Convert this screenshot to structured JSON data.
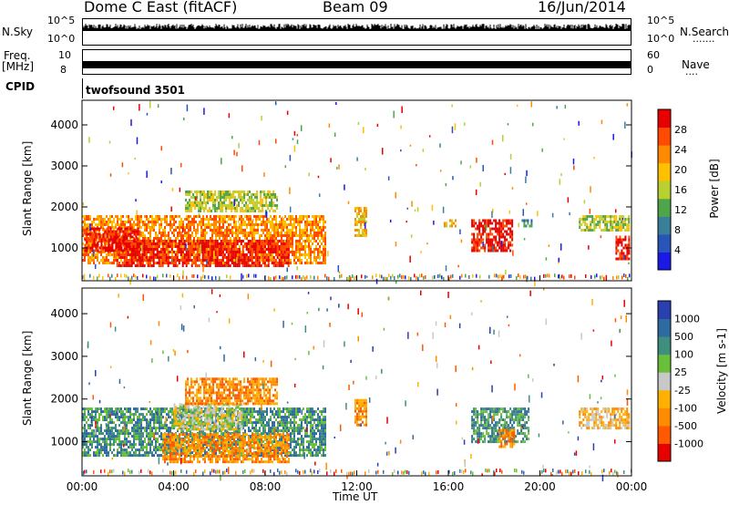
{
  "header": {
    "station": "Dome C East (fitACF)",
    "beam": "Beam 09",
    "date": "16/Jun/2014"
  },
  "top_panels": {
    "nsky_label": "N.Sky",
    "nsky_ticks": [
      "10^5",
      "10^0"
    ],
    "nsearch_label": "N.Search",
    "freq_label_line1": "Freq.",
    "freq_label_line2": "[MHz]",
    "freq_ticks": [
      "10",
      "8"
    ],
    "nave_label": "Nave",
    "nave_ticks": [
      "60",
      "0"
    ],
    "cpid_label": "CPID",
    "cpid_text": "twofsound 3501"
  },
  "colors": {
    "power_scale": [
      "#1a1ae6",
      "#2a55b8",
      "#3a7f9a",
      "#4fa64a",
      "#b8d030",
      "#ffc000",
      "#ff8a00",
      "#ff4a00",
      "#e60000"
    ],
    "velocity_scale": [
      "#2a3fb0",
      "#2f6aa0",
      "#3e8f7e",
      "#6abf3a",
      "#c8c8c8",
      "#ffb000",
      "#ff8c00",
      "#ff5a00",
      "#e60000"
    ]
  },
  "chart_data": [
    {
      "type": "heatmap",
      "name": "power",
      "ylabel": "Slant Range [km]",
      "yticks": [
        "1000",
        "2000",
        "3000",
        "4000"
      ],
      "ylim": [
        200,
        4600
      ],
      "xlim": [
        0,
        24
      ],
      "colorbar_label": "Power [dB]",
      "colorbar_ticks": [
        "4",
        "8",
        "12",
        "16",
        "20",
        "24",
        "28"
      ],
      "blocks": [
        {
          "x0": 0.0,
          "x1": 10.6,
          "y0": 600,
          "y1": 1800,
          "level": 6
        },
        {
          "x0": 0.1,
          "x1": 2.5,
          "y0": 900,
          "y1": 1500,
          "level": 8
        },
        {
          "x0": 1.5,
          "x1": 9.0,
          "y0": 550,
          "y1": 1200,
          "level": 8
        },
        {
          "x0": 4.5,
          "x1": 8.5,
          "y0": 1900,
          "y1": 2400,
          "level": 4
        },
        {
          "x0": 11.9,
          "x1": 12.4,
          "y0": 1300,
          "y1": 2000,
          "level": 5
        },
        {
          "x0": 15.8,
          "x1": 16.3,
          "y0": 1500,
          "y1": 1700,
          "level": 5
        },
        {
          "x0": 17.0,
          "x1": 18.8,
          "y0": 900,
          "y1": 1700,
          "level": 8
        },
        {
          "x0": 19.2,
          "x1": 19.6,
          "y0": 1500,
          "y1": 1700,
          "level": 2
        },
        {
          "x0": 21.7,
          "x1": 23.9,
          "y0": 1400,
          "y1": 1800,
          "level": 4
        },
        {
          "x0": 23.3,
          "x1": 23.9,
          "y0": 700,
          "y1": 1300,
          "level": 8
        }
      ]
    },
    {
      "type": "heatmap",
      "name": "velocity",
      "ylabel": "Slant Range [km]",
      "yticks": [
        "1000",
        "2000",
        "3000",
        "4000"
      ],
      "ylim": [
        200,
        4600
      ],
      "xlim": [
        0,
        24
      ],
      "colorbar_label": "Velocity [m s-1]",
      "colorbar_ticks": [
        "1000",
        "500",
        "100",
        "25",
        "-25",
        "-100",
        "-500",
        "-1000"
      ],
      "blocks": [
        {
          "x0": 0.0,
          "x1": 10.6,
          "y0": 700,
          "y1": 1800,
          "level": 2
        },
        {
          "x0": 4.0,
          "x1": 7.0,
          "y0": 1300,
          "y1": 1900,
          "level": 4
        },
        {
          "x0": 3.5,
          "x1": 9.0,
          "y0": 500,
          "y1": 1200,
          "level": 6
        },
        {
          "x0": 4.5,
          "x1": 8.5,
          "y0": 1900,
          "y1": 2500,
          "level": 6
        },
        {
          "x0": 11.9,
          "x1": 12.4,
          "y0": 1400,
          "y1": 2000,
          "level": 6
        },
        {
          "x0": 17.0,
          "x1": 19.5,
          "y0": 1000,
          "y1": 1800,
          "level": 2
        },
        {
          "x0": 18.2,
          "x1": 18.9,
          "y0": 900,
          "y1": 1300,
          "level": 6
        },
        {
          "x0": 21.7,
          "x1": 23.9,
          "y0": 1300,
          "y1": 1800,
          "level": 5
        }
      ]
    }
  ],
  "xaxis": {
    "label": "Time UT",
    "ticks": [
      "00:00",
      "04:00",
      "08:00",
      "12:00",
      "16:00",
      "20:00",
      "00:00"
    ]
  }
}
